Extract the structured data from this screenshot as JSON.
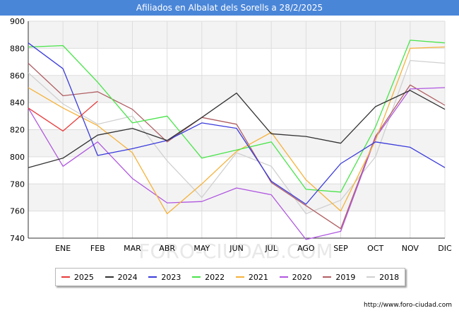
{
  "title": "Afiliados en Albalat dels Sorells a 28/2/2025",
  "source": "http://www.foro-ciudad.com",
  "watermark": "FORO-CIUDAD.COM",
  "chart_data": {
    "type": "line",
    "categories": [
      "",
      "ENE",
      "FEB",
      "MAR",
      "ABR",
      "MAY",
      "JUN",
      "JUL",
      "AGO",
      "SEP",
      "OCT",
      "NOV",
      "DIC"
    ],
    "ylim": [
      740,
      900
    ],
    "yticks": [
      740,
      760,
      780,
      800,
      820,
      840,
      860,
      880,
      900
    ],
    "grid": true,
    "legend_position": "bottom",
    "series": [
      {
        "name": "2025",
        "color": "#e83a3a",
        "values": [
          836,
          819,
          841,
          null,
          null,
          null,
          null,
          null,
          null,
          null,
          null,
          null,
          null
        ]
      },
      {
        "name": "2024",
        "color": "#333333",
        "values": [
          792,
          799,
          816,
          821,
          812,
          829,
          847,
          817,
          815,
          810,
          837,
          849,
          835
        ]
      },
      {
        "name": "2023",
        "color": "#3b3bdc",
        "values": [
          884,
          865,
          801,
          806,
          812,
          825,
          821,
          782,
          765,
          795,
          811,
          807,
          792
        ]
      },
      {
        "name": "2022",
        "color": "#49e449",
        "values": [
          881,
          882,
          855,
          825,
          830,
          799,
          805,
          811,
          776,
          774,
          822,
          886,
          884
        ]
      },
      {
        "name": "2021",
        "color": "#f5b23a",
        "values": [
          851,
          836,
          823,
          803,
          758,
          780,
          804,
          818,
          783,
          760,
          812,
          880,
          881
        ]
      },
      {
        "name": "2020",
        "color": "#b057e0",
        "values": [
          836,
          793,
          811,
          784,
          766,
          767,
          777,
          772,
          739,
          745,
          814,
          850,
          851
        ]
      },
      {
        "name": "2019",
        "color": "#b05e62",
        "values": [
          869,
          845,
          848,
          835,
          811,
          829,
          824,
          781,
          764,
          747,
          815,
          853,
          838
        ]
      },
      {
        "name": "2018",
        "color": "#d0d0d0",
        "values": [
          862,
          839,
          824,
          830,
          797,
          770,
          803,
          793,
          758,
          768,
          800,
          871,
          869
        ]
      }
    ]
  }
}
